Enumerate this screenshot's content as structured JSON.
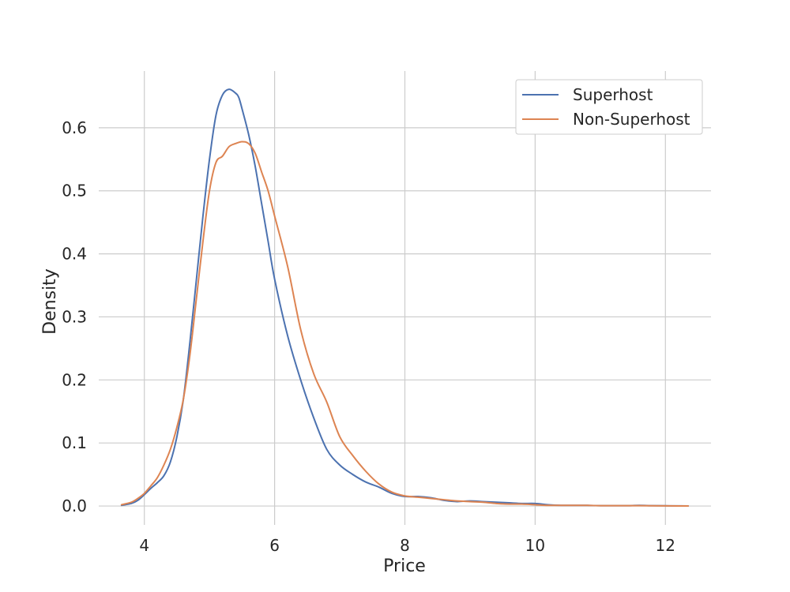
{
  "chart_data": {
    "type": "line",
    "title": "",
    "xlabel": "Price",
    "ylabel": "Density",
    "xlim": [
      3.3,
      12.7
    ],
    "ylim": [
      -0.03,
      0.69
    ],
    "xticks": [
      4,
      6,
      8,
      10,
      12
    ],
    "xtick_labels": [
      "4",
      "6",
      "8",
      "10",
      "12"
    ],
    "yticks": [
      0.0,
      0.1,
      0.2,
      0.3,
      0.4,
      0.5,
      0.6
    ],
    "ytick_labels": [
      "0.0",
      "0.1",
      "0.2",
      "0.3",
      "0.4",
      "0.5",
      "0.6"
    ],
    "grid": true,
    "legend_position": "top-right",
    "series": [
      {
        "name": "Superhost",
        "color": "#4c72b0",
        "x": [
          3.65,
          3.8,
          3.9,
          4.0,
          4.1,
          4.2,
          4.3,
          4.4,
          4.5,
          4.6,
          4.7,
          4.8,
          4.9,
          5.0,
          5.1,
          5.2,
          5.3,
          5.4,
          5.45,
          5.5,
          5.6,
          5.7,
          5.8,
          5.9,
          6.0,
          6.2,
          6.4,
          6.6,
          6.8,
          7.0,
          7.2,
          7.4,
          7.6,
          7.8,
          8.0,
          8.2,
          8.4,
          8.6,
          8.8,
          9.0,
          9.2,
          9.4,
          9.6,
          9.8,
          10.0,
          10.2,
          10.4,
          10.6,
          10.8,
          11.0,
          11.2,
          11.4,
          11.6,
          11.8,
          12.0,
          12.2,
          12.35
        ],
        "y": [
          0.001,
          0.004,
          0.009,
          0.018,
          0.028,
          0.037,
          0.048,
          0.07,
          0.11,
          0.17,
          0.26,
          0.36,
          0.46,
          0.55,
          0.62,
          0.652,
          0.661,
          0.655,
          0.648,
          0.63,
          0.59,
          0.54,
          0.48,
          0.42,
          0.36,
          0.27,
          0.2,
          0.14,
          0.09,
          0.065,
          0.05,
          0.038,
          0.03,
          0.02,
          0.015,
          0.015,
          0.013,
          0.009,
          0.007,
          0.008,
          0.007,
          0.006,
          0.005,
          0.004,
          0.004,
          0.002,
          0.001,
          0.001,
          0.001,
          0.0005,
          0.0005,
          0.0005,
          0.001,
          0.0005,
          0.0003,
          0.0002,
          0.0001
        ]
      },
      {
        "name": "Non-Superhost",
        "color": "#dd8452",
        "x": [
          3.65,
          3.8,
          3.9,
          4.0,
          4.1,
          4.2,
          4.3,
          4.4,
          4.5,
          4.6,
          4.7,
          4.8,
          4.9,
          5.0,
          5.1,
          5.2,
          5.3,
          5.4,
          5.5,
          5.6,
          5.7,
          5.8,
          5.9,
          6.0,
          6.2,
          6.4,
          6.6,
          6.8,
          7.0,
          7.2,
          7.4,
          7.6,
          7.8,
          8.0,
          8.2,
          8.4,
          8.6,
          8.8,
          9.0,
          9.2,
          9.4,
          9.6,
          9.8,
          10.0,
          10.2,
          10.4,
          10.6,
          10.8,
          11.0,
          11.2,
          11.4,
          11.6,
          11.8,
          12.0,
          12.2,
          12.35
        ],
        "y": [
          0.002,
          0.006,
          0.012,
          0.02,
          0.032,
          0.045,
          0.065,
          0.09,
          0.125,
          0.17,
          0.24,
          0.33,
          0.42,
          0.5,
          0.545,
          0.555,
          0.57,
          0.575,
          0.578,
          0.575,
          0.56,
          0.53,
          0.5,
          0.46,
          0.38,
          0.28,
          0.21,
          0.165,
          0.11,
          0.08,
          0.055,
          0.035,
          0.022,
          0.016,
          0.014,
          0.012,
          0.01,
          0.008,
          0.007,
          0.006,
          0.004,
          0.003,
          0.003,
          0.002,
          0.001,
          0.001,
          0.001,
          0.001,
          0.0005,
          0.0005,
          0.0005,
          0.0005,
          0.0003,
          0.0002,
          0.0001,
          0.0001
        ]
      }
    ]
  }
}
